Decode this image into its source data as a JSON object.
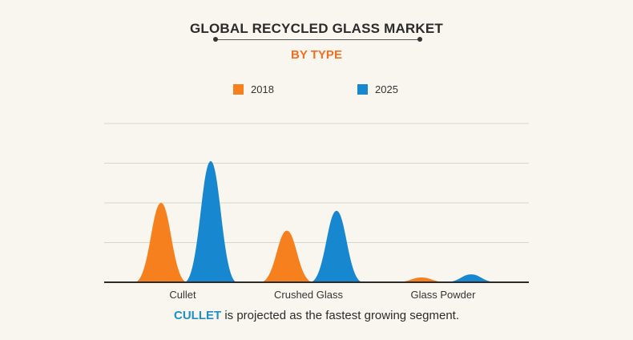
{
  "title": "GLOBAL RECYCLED GLASS MARKET",
  "subtitle": "BY TYPE",
  "colors": {
    "2018": "#f7801e",
    "2025": "#1787cf",
    "accent": "#f26f21",
    "highlight": "#1f8fc6"
  },
  "chart_data": {
    "type": "area",
    "categories": [
      "Cullet",
      "Crushed Glass",
      "Glass Powder"
    ],
    "series": [
      {
        "name": "2018",
        "values": [
          2.0,
          1.3,
          0.12
        ]
      },
      {
        "name": "2025",
        "values": [
          3.05,
          1.8,
          0.2
        ]
      }
    ],
    "ylim": [
      0,
      4
    ],
    "grid": true,
    "legend": "top-center"
  },
  "footer": {
    "highlight": "CULLET",
    "text": " is projected as the fastest growing segment."
  }
}
